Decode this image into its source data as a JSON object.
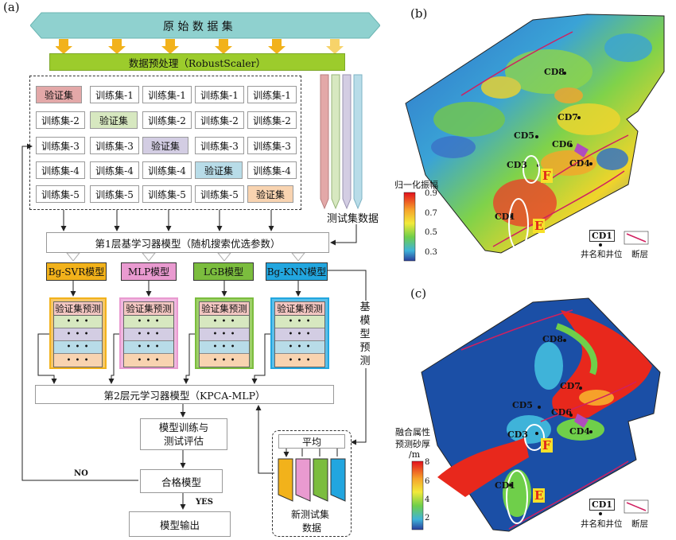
{
  "panel_a": {
    "label": "(a)",
    "raw_dataset": "原 始 数 据 集",
    "preprocess": "数据预处理（RobustScaler）",
    "grid": [
      [
        "验证集",
        "训练集-1",
        "训练集-1",
        "训练集-1",
        "训练集-1"
      ],
      [
        "训练集-2",
        "验证集",
        "训练集-2",
        "训练集-2",
        "训练集-2"
      ],
      [
        "训练集-3",
        "训练集-3",
        "验证集",
        "训练集-3",
        "训练集-3"
      ],
      [
        "训练集-4",
        "训练集-4",
        "训练集-4",
        "验证集",
        "训练集-4"
      ],
      [
        "训练集-5",
        "训练集-5",
        "训练集-5",
        "训练集-5",
        "验证集"
      ]
    ],
    "test_data": "测试集数据",
    "layer1": "第1层基学习器模型（随机搜索优选参数）",
    "models": [
      "Bg-SVR模型",
      "MLP模型",
      "LGB模型",
      "Bg-KNN模型"
    ],
    "pred_header": "验证集预测",
    "dots": "• • •",
    "base_pred_vertical": "基模型预测",
    "layer2": "第2层元学习器模型（KPCA-MLP）",
    "train_eval": [
      "模型训练与",
      "测试评估"
    ],
    "qualified": "合格模型",
    "output": "模型输出",
    "no": "NO",
    "yes": "YES",
    "average": "平均",
    "new_test": [
      "新测试集",
      "数据"
    ],
    "colors": {
      "raw": "#8fd1cf",
      "preprocess": "#9ccc2c",
      "arrow": "#f2b21b",
      "val_colors": [
        "#e3a8a8",
        "#d7e8c0",
        "#d3cde3",
        "#b8dce8",
        "#f8d3b0"
      ],
      "models": [
        "#f2b21b",
        "#e99ad0",
        "#7bbd3e",
        "#22a6df"
      ]
    }
  },
  "panel_b": {
    "label": "(b)",
    "wells": [
      "CD8",
      "CD7",
      "CD5",
      "CD6",
      "CD3",
      "CD4",
      "CD1"
    ],
    "zones": [
      "F",
      "E"
    ],
    "colorbar_title": "归一化振幅",
    "colorbar_ticks": [
      "0.9",
      "0.7",
      "0.5",
      "0.3"
    ],
    "legend_well": "CD1",
    "legend_well_label": "井名和井位",
    "legend_fault": "断层"
  },
  "panel_c": {
    "label": "(c)",
    "wells": [
      "CD8",
      "CD7",
      "CD5",
      "CD6",
      "CD3",
      "CD4",
      "CD1"
    ],
    "zones": [
      "F",
      "E"
    ],
    "colorbar_title": [
      "融合属性",
      "预测砂厚",
      "/m"
    ],
    "colorbar_ticks": [
      "8",
      "6",
      "4",
      "2"
    ],
    "legend_well": "CD1",
    "legend_well_label": "井名和井位",
    "legend_fault": "断层"
  }
}
